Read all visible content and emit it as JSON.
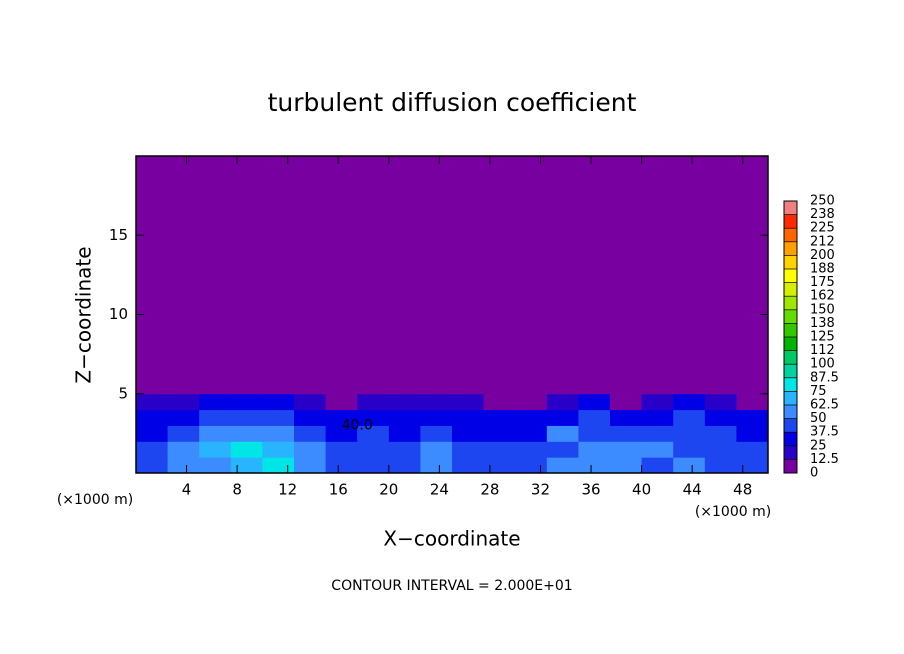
{
  "chart_data": {
    "type": "heatmap",
    "title": "turbulent diffusion coefficient",
    "x_label": "X−coordinate",
    "y_label": "Z−coordinate",
    "x_unit": "(×1000 m)",
    "y_unit": "(×1000 m)",
    "footnote": "CONTOUR INTERVAL = 2.000E+01",
    "xlim": [
      0,
      50
    ],
    "ylim": [
      0,
      20
    ],
    "xticks": [
      4,
      8,
      12,
      16,
      20,
      24,
      28,
      32,
      36,
      40,
      44,
      48
    ],
    "yticks": [
      5,
      10,
      15
    ],
    "x_edges": [
      0,
      2.5,
      5,
      7.5,
      10,
      12.5,
      15,
      17.5,
      20,
      22.5,
      25,
      27.5,
      30,
      32.5,
      35,
      37.5,
      40,
      42.5,
      45,
      47.5,
      50
    ],
    "z_edges": [
      0,
      1,
      2,
      3,
      4,
      5,
      20
    ],
    "values": [
      [
        45,
        55,
        60,
        70,
        75,
        60,
        45,
        40,
        45,
        50,
        45,
        40,
        45,
        50,
        55,
        50,
        45,
        50,
        45,
        45
      ],
      [
        40,
        50,
        65,
        75,
        70,
        50,
        40,
        40,
        45,
        50,
        45,
        45,
        40,
        45,
        50,
        55,
        50,
        45,
        45,
        40
      ],
      [
        35,
        45,
        55,
        60,
        55,
        40,
        35,
        40,
        35,
        40,
        35,
        35,
        35,
        50,
        45,
        40,
        45,
        45,
        40,
        35
      ],
      [
        30,
        35,
        40,
        45,
        40,
        30,
        25,
        30,
        30,
        35,
        30,
        30,
        25,
        35,
        40,
        30,
        35,
        40,
        35,
        30
      ],
      [
        15,
        20,
        25,
        30,
        25,
        15,
        10,
        15,
        20,
        20,
        15,
        10,
        5,
        15,
        25,
        10,
        20,
        25,
        15,
        10
      ],
      [
        0,
        0,
        0,
        0,
        0,
        0,
        0,
        0,
        0,
        0,
        0,
        0,
        0,
        0,
        0,
        0,
        0,
        0,
        0,
        0
      ]
    ],
    "annotations": [
      {
        "text": "40.0",
        "x": 17.5,
        "y": 3
      }
    ],
    "colorbar_ticks": [
      0,
      12.5,
      25,
      37.5,
      50,
      62.5,
      75,
      87.5,
      100,
      {
        "value": 112.5,
        "label": "112"
      },
      125,
      {
        "value": 137.5,
        "label": "138"
      },
      150,
      {
        "value": 162.5,
        "label": "162"
      },
      175,
      {
        "value": 187.5,
        "label": "188"
      },
      200,
      {
        "value": 212.5,
        "label": "212"
      },
      225,
      {
        "value": 237.5,
        "label": "238"
      },
      250
    ],
    "colors": [
      "#7800a0",
      "#2800c8",
      "#0000e6",
      "#1e46f0",
      "#3c8cff",
      "#28b4ff",
      "#00e6e6",
      "#00d2a0",
      "#00c864",
      "#00b400",
      "#32c800",
      "#64dc00",
      "#a0e600",
      "#d2f000",
      "#ffff00",
      "#ffd200",
      "#ffa000",
      "#ff6400",
      "#ff2800",
      "#f08080"
    ]
  }
}
